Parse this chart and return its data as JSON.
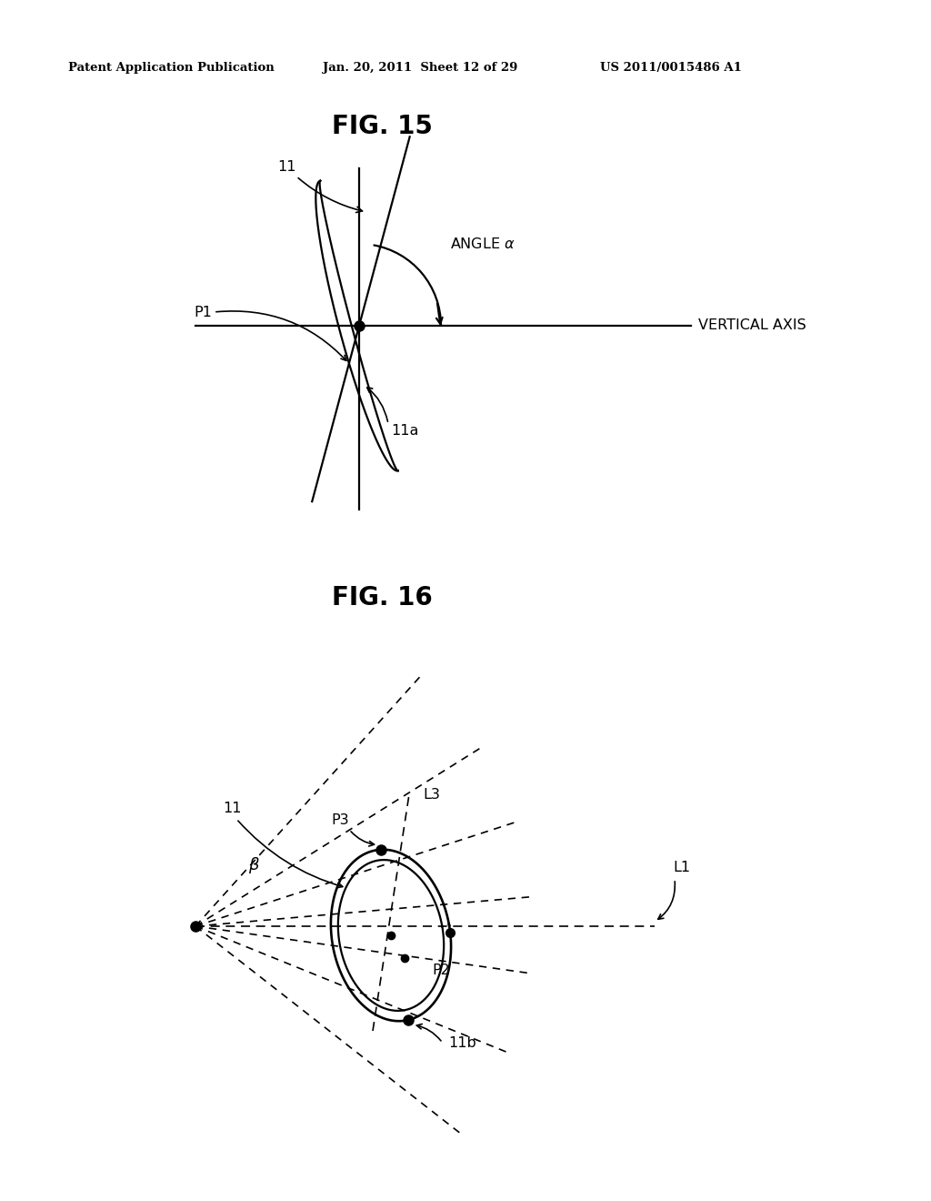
{
  "bg_color": "#ffffff",
  "text_color": "#000000",
  "header_left": "Patent Application Publication",
  "header_mid": "Jan. 20, 2011  Sheet 12 of 29",
  "header_right": "US 2011/0015486 A1",
  "fig15_title": "FIG. 15",
  "fig16_title": "FIG. 16",
  "lw_main": 1.6,
  "lw_thin": 1.2,
  "dot_size": 8,
  "dot_size_small": 7,
  "fontsize_header": 9.5,
  "fontsize_title": 20,
  "fontsize_label": 11.5
}
